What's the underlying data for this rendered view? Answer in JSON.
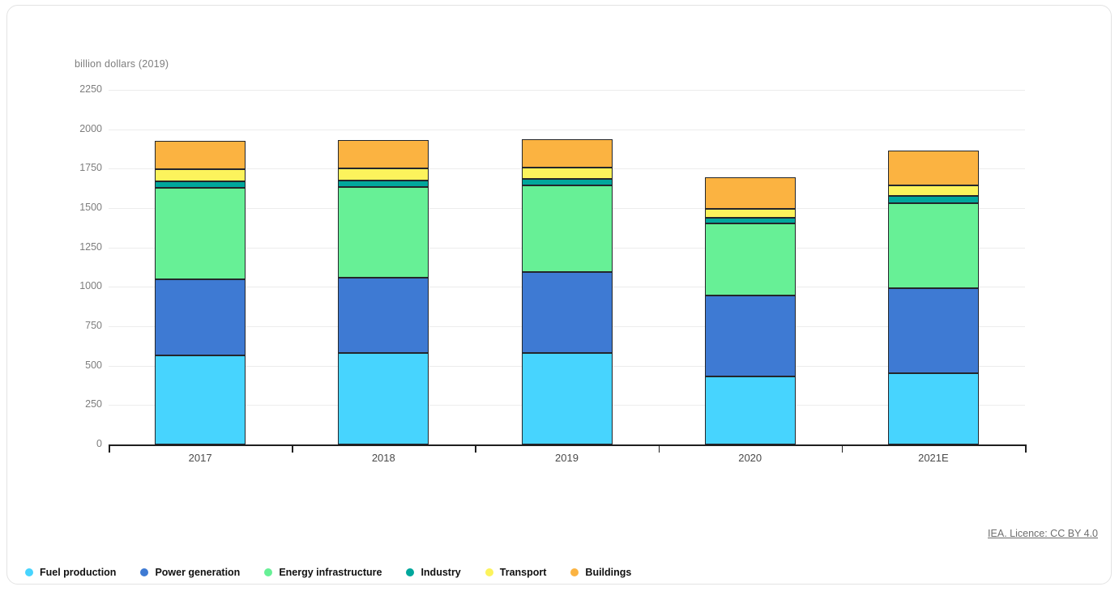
{
  "page": {
    "unit_label": "billion dollars (2019)",
    "licence_text": "IEA. Licence: CC BY 4.0"
  },
  "chart_data": {
    "type": "bar",
    "stacked": true,
    "title": "",
    "xlabel": "",
    "ylabel": "billion dollars (2019)",
    "categories": [
      "2017",
      "2018",
      "2019",
      "2020",
      "2021E"
    ],
    "series": [
      {
        "name": "Fuel production",
        "color": "#47d4fe",
        "values": [
          565,
          578,
          580,
          432,
          453
        ]
      },
      {
        "name": "Power generation",
        "color": "#3e7ad3",
        "values": [
          485,
          482,
          514,
          514,
          536
        ]
      },
      {
        "name": "Energy infrastructure",
        "color": "#67f096",
        "values": [
          580,
          574,
          551,
          458,
          542
        ]
      },
      {
        "name": "Industry",
        "color": "#00a79c",
        "values": [
          40,
          41,
          40,
          36,
          46
        ]
      },
      {
        "name": "Transport",
        "color": "#fcf35c",
        "values": [
          78,
          77,
          70,
          55,
          65
        ]
      },
      {
        "name": "Buildings",
        "color": "#fbb341",
        "values": [
          180,
          181,
          183,
          200,
          223
        ]
      }
    ],
    "totals": [
      1928,
      1933,
      1938,
      1695,
      1865
    ],
    "ylim": [
      0,
      2250
    ],
    "ytick_step": 250,
    "grid": "horizontal",
    "legend_position": "bottom-left",
    "bar_outline_color": "#23262b"
  }
}
